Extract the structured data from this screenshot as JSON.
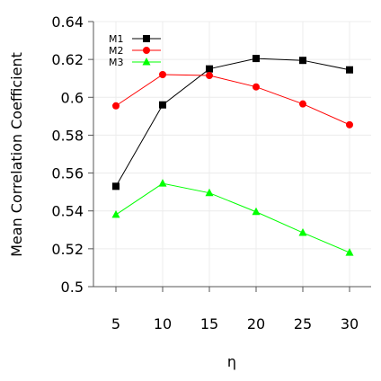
{
  "chart_data": {
    "type": "line",
    "x": [
      5,
      10,
      15,
      20,
      25,
      30
    ],
    "xlabel": "η",
    "ylabel": "Mean Correlation Coefficient",
    "ylim": [
      0.5,
      0.64
    ],
    "yticks": [
      "0.5",
      "0.52",
      "0.54",
      "0.56",
      "0.58",
      "0.6",
      "0.62",
      "0.64"
    ],
    "xticks": [
      "5",
      "10",
      "15",
      "20",
      "25",
      "30"
    ],
    "grid": true,
    "legend_position": "top-left",
    "series": [
      {
        "name": "M1",
        "values": [
          0.553,
          0.596,
          0.615,
          0.6205,
          0.6195,
          0.6145
        ],
        "color": "#000000",
        "marker": "square"
      },
      {
        "name": "M2",
        "values": [
          0.5955,
          0.612,
          0.6115,
          0.6055,
          0.5965,
          0.5855
        ],
        "color": "#ff0000",
        "marker": "circle"
      },
      {
        "name": "M3",
        "values": [
          0.538,
          0.5545,
          0.5495,
          0.5395,
          0.5285,
          0.518
        ],
        "color": "#00ff00",
        "marker": "triangle"
      }
    ]
  }
}
